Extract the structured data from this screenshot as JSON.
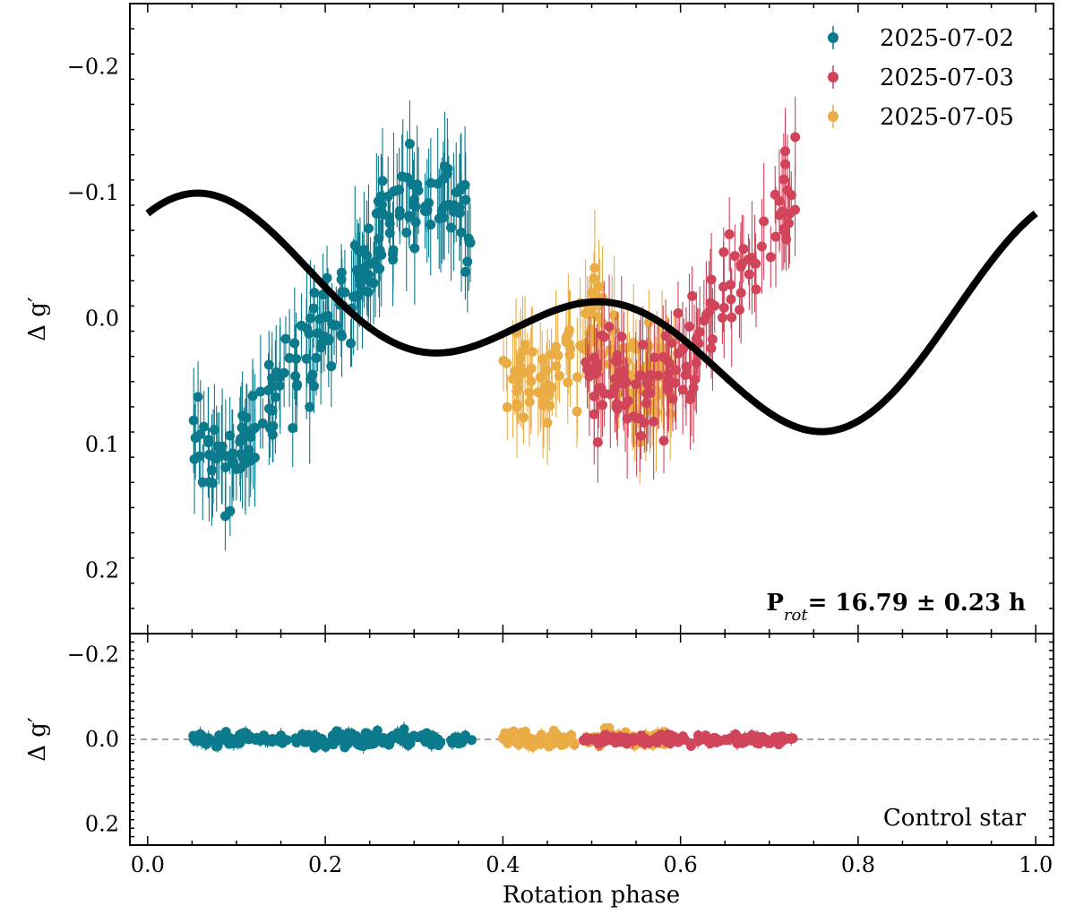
{
  "chart_data": [
    {
      "type": "scatter",
      "panel": "top",
      "xlabel": "",
      "ylabel": "Δ g′",
      "xlim": [
        -0.02,
        1.02
      ],
      "ylim": [
        0.25,
        -0.25
      ],
      "y_inverted": true,
      "yticks": [
        -0.2,
        -0.1,
        0.0,
        0.1,
        0.2
      ],
      "ytick_labels": [
        "−0.2",
        "−0.1",
        "0.0",
        "0.1",
        "0.2"
      ],
      "annotation": {
        "label": "P",
        "sub": "rot",
        "value": "= 16.79 ± 0.23 h"
      },
      "legend": {
        "placement": "top-right"
      },
      "model": {
        "name": "sinusoid fit",
        "color": "#000000",
        "fundamental": {
          "amplitude": 0.054,
          "phase": 3.85
        },
        "harmonic": {
          "amplitude": 0.054,
          "phase": 4.25
        },
        "offset": 0.0
      },
      "series": [
        {
          "name": "2025-07-02",
          "color": "#0a7a8c",
          "x_range": [
            0.05,
            0.365
          ],
          "trend": [
            [
              0.05,
              0.1
            ],
            [
              0.09,
              0.12
            ],
            [
              0.15,
              0.05
            ],
            [
              0.22,
              0.0
            ],
            [
              0.27,
              -0.08
            ],
            [
              0.32,
              -0.1
            ],
            [
              0.365,
              -0.08
            ]
          ]
        },
        {
          "name": "2025-07-03",
          "color": "#d1455a",
          "x_range": [
            0.49,
            0.73
          ],
          "trend": [
            [
              0.49,
              0.05
            ],
            [
              0.55,
              0.06
            ],
            [
              0.6,
              0.04
            ],
            [
              0.65,
              -0.02
            ],
            [
              0.7,
              -0.06
            ],
            [
              0.73,
              -0.12
            ]
          ]
        },
        {
          "name": "2025-07-05",
          "color": "#eaad45",
          "x_range": [
            0.4,
            0.595
          ],
          "trend": [
            [
              0.4,
              0.03
            ],
            [
              0.45,
              0.05
            ],
            [
              0.5,
              0.0
            ],
            [
              0.55,
              0.04
            ],
            [
              0.595,
              0.05
            ]
          ]
        }
      ]
    },
    {
      "type": "scatter",
      "panel": "bottom",
      "xlabel": "Rotation phase",
      "ylabel": "Δ g′",
      "xlim": [
        -0.02,
        1.02
      ],
      "ylim": [
        0.25,
        -0.25
      ],
      "y_inverted": true,
      "xticks": [
        0.0,
        0.2,
        0.4,
        0.6,
        0.8,
        1.0
      ],
      "xtick_labels": [
        "0.0",
        "0.2",
        "0.4",
        "0.6",
        "0.8",
        "1.0"
      ],
      "yticks": [
        -0.2,
        0.0,
        0.2
      ],
      "ytick_labels": [
        "−0.2",
        "0.0",
        "0.2"
      ],
      "reference_line": {
        "y": 0.0,
        "style": "dashed",
        "color": "#888888"
      },
      "annotation": "Control star",
      "series": [
        {
          "name": "2025-07-02",
          "color": "#0a7a8c",
          "x_range": [
            0.05,
            0.365
          ],
          "scatter": 0.012
        },
        {
          "name": "2025-07-03",
          "color": "#d1455a",
          "x_range": [
            0.49,
            0.73
          ],
          "scatter": 0.008
        },
        {
          "name": "2025-07-05",
          "color": "#eaad45",
          "x_range": [
            0.4,
            0.595
          ],
          "scatter": 0.012
        }
      ]
    }
  ]
}
